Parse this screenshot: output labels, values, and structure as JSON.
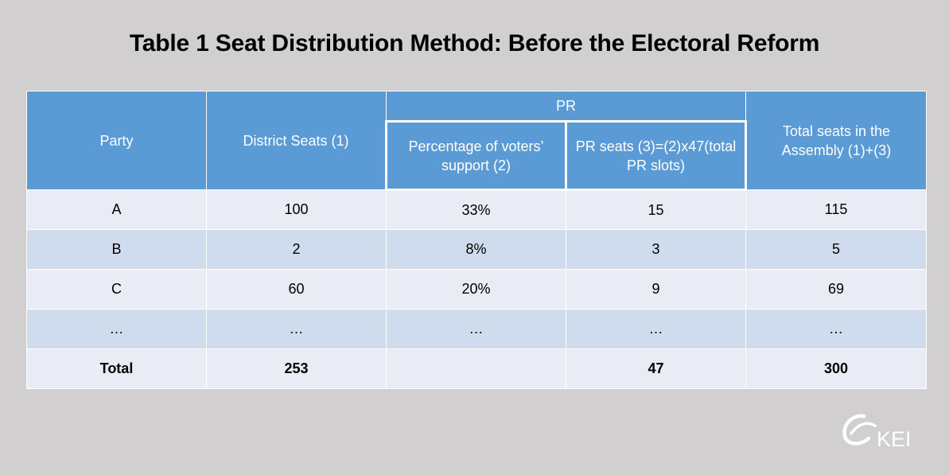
{
  "title": "Table 1 Seat Distribution Method: Before the Electoral Reform",
  "table": {
    "headers": {
      "party": "Party",
      "district": "District Seats (1)",
      "pr_group": "PR",
      "pct": "Percentage of voters’ support (2)",
      "pr_seats": "PR seats (3)=(2)x47(total PR slots)",
      "total": "Total seats in the Assembly (1)+(3)"
    },
    "rows": [
      [
        "A",
        "100",
        "33%",
        "15",
        "115"
      ],
      [
        "B",
        "2",
        "8%",
        "3",
        "5"
      ],
      [
        "C",
        "60",
        "20%",
        "9",
        "69"
      ],
      [
        "…",
        "…",
        "…",
        "…",
        "…"
      ],
      [
        "Total",
        "253",
        "",
        "47",
        "300"
      ]
    ]
  },
  "logo": {
    "text": "KEI",
    "icon": "kei-logo-icon"
  },
  "colors": {
    "background": "#d1cfd0",
    "header": "#5b9bd5",
    "row_light": "#e9ebf5",
    "row_dark": "#cfdcee"
  }
}
